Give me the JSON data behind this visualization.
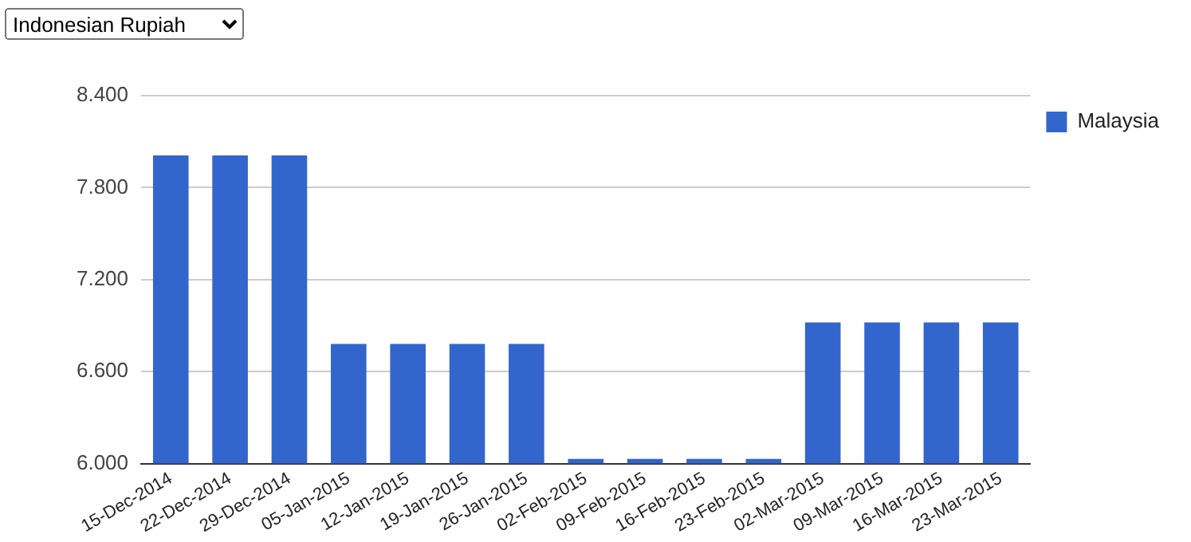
{
  "chart_data": {
    "type": "bar",
    "annotations": [
      "Indonesian Rupiah"
    ],
    "categories": [
      "15-Dec-2014",
      "22-Dec-2014",
      "29-Dec-2014",
      "05-Jan-2015",
      "12-Jan-2015",
      "19-Jan-2015",
      "26-Jan-2015",
      "02-Feb-2015",
      "09-Feb-2015",
      "16-Feb-2015",
      "23-Feb-2015",
      "02-Mar-2015",
      "09-Mar-2015",
      "16-Mar-2015",
      "23-Mar-2015"
    ],
    "series": [
      {
        "name": "Malaysia",
        "color": "#3366cc",
        "values": [
          8.01,
          8.01,
          8.01,
          6.78,
          6.78,
          6.78,
          6.78,
          6.03,
          6.03,
          6.03,
          6.03,
          6.92,
          6.92,
          6.92,
          6.92
        ]
      }
    ],
    "ylim": [
      6,
      8.4
    ],
    "yticks": [
      {
        "value": 6,
        "label": "6.000"
      },
      {
        "value": 6.6,
        "label": "6.600"
      },
      {
        "value": 7.2,
        "label": "7.200"
      },
      {
        "value": 7.8,
        "label": "7.800"
      },
      {
        "value": 8.4,
        "label": "8.400"
      }
    ],
    "grid": "y",
    "legend": "top right"
  }
}
